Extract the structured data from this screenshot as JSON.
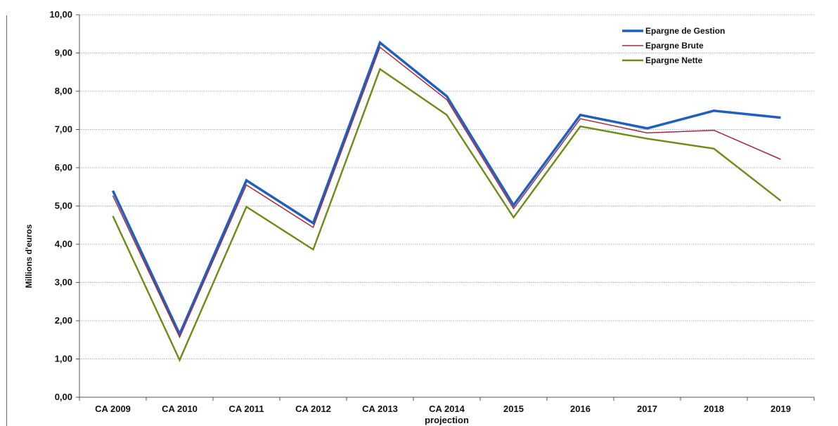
{
  "chart_data": {
    "type": "line",
    "ylabel": "Millions d'euros",
    "xlabel": "",
    "ylim": [
      0,
      10
    ],
    "yticks": [
      "0,00",
      "1,00",
      "2,00",
      "3,00",
      "4,00",
      "5,00",
      "6,00",
      "7,00",
      "8,00",
      "9,00",
      "10,00"
    ],
    "categories": [
      "CA 2009",
      "CA 2010",
      "CA 2011",
      "CA 2012",
      "CA 2013",
      "CA 2014",
      "2015",
      "2016",
      "2017",
      "2018",
      "2019"
    ],
    "category_sub_labels": {
      "projection": "projection"
    },
    "grid": true,
    "legend_position": "top-right",
    "series": [
      {
        "name": "Epargne de Gestion",
        "color": "#1f5fbf",
        "values": [
          5.4,
          1.65,
          5.67,
          4.55,
          9.27,
          7.87,
          5.02,
          7.38,
          7.03,
          7.49,
          7.31
        ]
      },
      {
        "name": "Epargne Brute",
        "color": "#a8283c",
        "values": [
          5.27,
          1.57,
          5.55,
          4.44,
          9.15,
          7.78,
          4.93,
          7.28,
          6.91,
          6.98,
          6.22
        ]
      },
      {
        "name": "Epargne Nette",
        "color": "#6f8a12",
        "values": [
          4.74,
          0.97,
          4.98,
          3.86,
          8.58,
          7.38,
          4.7,
          7.08,
          6.76,
          6.5,
          5.14
        ]
      }
    ]
  }
}
